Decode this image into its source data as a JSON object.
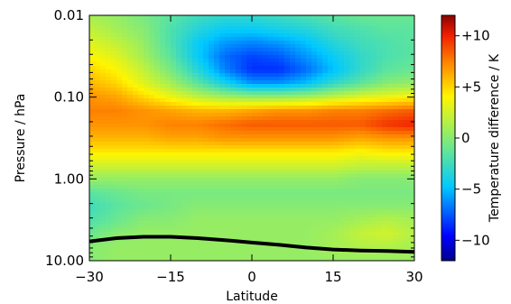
{
  "chart_data": {
    "type": "heatmap",
    "title": "",
    "xlabel": "Latitude",
    "ylabel": "Pressure / hPa",
    "x_range": [
      -30,
      30
    ],
    "y_range_hpa": [
      0.01,
      10.0
    ],
    "y_scale": "log",
    "y_inverted": true,
    "x_ticks": [
      {
        "value": -30,
        "label": "−30"
      },
      {
        "value": -15,
        "label": "−15"
      },
      {
        "value": 0,
        "label": "0"
      },
      {
        "value": 15,
        "label": "15"
      },
      {
        "value": 30,
        "label": "30"
      }
    ],
    "y_ticks": [
      {
        "value": 0.01,
        "label": "0.01"
      },
      {
        "value": 0.1,
        "label": "0.10"
      },
      {
        "value": 1.0,
        "label": "1.00"
      },
      {
        "value": 10.0,
        "label": "10.00"
      }
    ],
    "colorbar": {
      "label": "Temperature difference / K",
      "range": [
        -12,
        12
      ],
      "ticks": [
        {
          "value": 10,
          "label": "+10"
        },
        {
          "value": 5,
          "label": "+5"
        },
        {
          "value": 0,
          "label": "0"
        },
        {
          "value": -5,
          "label": "−5"
        },
        {
          "value": -10,
          "label": "−10"
        }
      ],
      "colormap": "rainbow (blue → cyan → green → yellow → red)"
    },
    "latitudes": [
      -30,
      -25,
      -20,
      -15,
      -10,
      -5,
      0,
      5,
      10,
      15,
      20,
      25,
      30
    ],
    "pressures_hpa": [
      0.01,
      0.015,
      0.022,
      0.032,
      0.046,
      0.068,
      0.1,
      0.147,
      0.215,
      0.316,
      0.464,
      0.681,
      1.0,
      1.47,
      2.15,
      3.16,
      4.64,
      6.81,
      10.0
    ],
    "temperature_difference_K": [
      [
        1.0,
        0.5,
        -0.5,
        -1.5,
        -2.5,
        -3.0,
        -3.0,
        -2.5,
        -2.0,
        -1.5,
        -1.0,
        -1.0,
        -1.0
      ],
      [
        2.0,
        1.0,
        0.0,
        -2.0,
        -3.5,
        -4.5,
        -4.5,
        -4.0,
        -3.5,
        -2.5,
        -2.0,
        -1.5,
        -1.5
      ],
      [
        3.0,
        2.0,
        0.5,
        -2.0,
        -4.5,
        -6.0,
        -6.5,
        -6.0,
        -5.0,
        -3.5,
        -2.5,
        -2.0,
        -1.5
      ],
      [
        4.0,
        3.0,
        1.0,
        -1.5,
        -4.5,
        -7.0,
        -8.0,
        -7.5,
        -6.0,
        -4.5,
        -3.0,
        -2.0,
        -1.5
      ],
      [
        5.0,
        4.0,
        2.0,
        -0.5,
        -3.5,
        -6.5,
        -8.5,
        -8.5,
        -7.0,
        -5.0,
        -3.0,
        -1.5,
        -1.0
      ],
      [
        6.0,
        5.0,
        3.0,
        1.0,
        -1.5,
        -4.0,
        -6.0,
        -6.0,
        -5.0,
        -3.0,
        -1.5,
        0.0,
        0.5
      ],
      [
        7.0,
        6.5,
        5.0,
        3.5,
        2.0,
        1.0,
        0.5,
        0.5,
        1.0,
        2.0,
        3.0,
        3.5,
        4.0
      ],
      [
        7.5,
        7.5,
        7.0,
        6.5,
        6.0,
        6.0,
        6.5,
        7.0,
        7.0,
        7.5,
        7.5,
        8.0,
        8.5
      ],
      [
        7.0,
        7.0,
        7.0,
        7.5,
        7.5,
        8.0,
        8.5,
        8.5,
        8.5,
        8.5,
        8.5,
        9.5,
        10.0
      ],
      [
        6.0,
        6.0,
        6.0,
        6.5,
        6.5,
        7.0,
        7.0,
        7.0,
        7.0,
        7.0,
        6.5,
        7.0,
        7.0
      ],
      [
        4.5,
        4.5,
        4.5,
        4.5,
        4.5,
        4.5,
        4.5,
        4.5,
        4.5,
        4.5,
        4.0,
        4.5,
        4.5
      ],
      [
        2.5,
        2.5,
        2.5,
        2.5,
        2.5,
        2.5,
        2.5,
        2.5,
        2.5,
        2.5,
        2.0,
        2.0,
        2.0
      ],
      [
        0.5,
        0.5,
        0.5,
        0.5,
        0.5,
        0.5,
        0.5,
        0.5,
        0.5,
        0.5,
        0.0,
        0.0,
        0.0
      ],
      [
        -1.5,
        -1.0,
        -0.5,
        -0.5,
        -0.5,
        -0.5,
        -0.5,
        -0.5,
        -0.5,
        -0.5,
        -0.5,
        -0.5,
        -0.5
      ],
      [
        -2.5,
        -1.5,
        -1.0,
        -0.5,
        0.0,
        0.0,
        0.0,
        0.0,
        0.0,
        0.0,
        0.0,
        0.0,
        0.0
      ],
      [
        -2.0,
        -1.0,
        0.0,
        0.0,
        0.5,
        0.5,
        0.5,
        0.5,
        0.5,
        0.5,
        1.0,
        1.5,
        1.0
      ],
      [
        -1.0,
        0.0,
        0.5,
        0.5,
        0.5,
        0.5,
        0.5,
        0.5,
        0.5,
        1.0,
        2.0,
        2.5,
        1.5
      ],
      [
        0.0,
        0.5,
        0.5,
        0.5,
        0.5,
        0.5,
        0.5,
        0.5,
        0.5,
        1.0,
        1.5,
        1.5,
        1.0
      ],
      [
        0.0,
        0.5,
        0.5,
        0.5,
        0.5,
        0.5,
        0.5,
        0.5,
        0.5,
        0.5,
        0.5,
        0.5,
        0.5
      ]
    ],
    "surface_line": {
      "description": "bottom boundary",
      "latitudes": [
        -30,
        -25,
        -20,
        -15,
        -10,
        -5,
        0,
        5,
        10,
        15,
        20,
        25,
        30
      ],
      "pressures_hpa": [
        5.8,
        5.3,
        5.1,
        5.1,
        5.3,
        5.6,
        6.0,
        6.4,
        6.9,
        7.3,
        7.5,
        7.6,
        7.8
      ]
    },
    "grid": false,
    "legend": "colorbar-right"
  }
}
